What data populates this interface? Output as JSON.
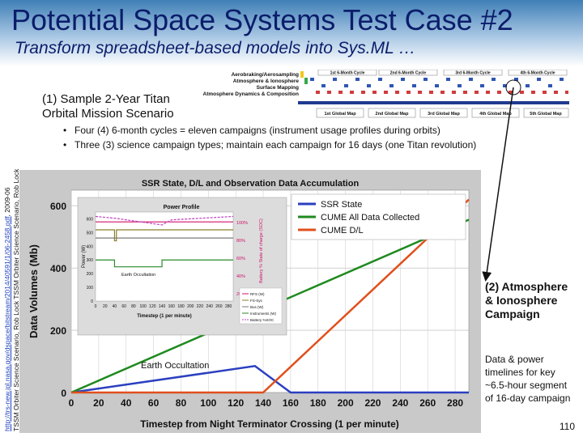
{
  "slide": {
    "title": "Potential Space Systems Test Case #2",
    "subtitle": "Transform spreadsheet-based models into Sys.ML …",
    "sample_label_line1": "(1) Sample 2-Year Titan",
    "sample_label_line2": "Orbital Mission Scenario",
    "bullets": [
      "Four (4) 6-month cycles = eleven campaigns (instrument usage profiles during orbits)",
      "Three (3) science campaign types; maintain each campaign for 16 days (one Titan revolution)"
    ],
    "credit_link": "http://trs-new.jpl.nasa.gov/dspace/bitstream/2014/40591/1/06-2458.pdf",
    "credit_text": ", 2009-06",
    "credit_line2": "TSSM Orbiter Science Scenario, Rob Lock TSSM Orbiter Science Scenario, Rob Lock",
    "right_title": [
      "(2) Atmosphere",
      "& Ionosphere",
      "Campaign"
    ],
    "right_text": [
      "Data & power",
      "timelines for key",
      "~6.5-hour segment",
      "of 16-day campaign"
    ],
    "page_number": "110"
  },
  "mission_strip": {
    "campaign_labels": [
      "Aerobraking/Aerosampling",
      "Atmosphere & Ionosphere",
      "Surface Mapping",
      "Atmosphere Dynamics & Composition"
    ],
    "cycles": [
      "1st 6-Month Cycle",
      "2nd 6-Month Cycle",
      "3rd 6-Month Cycle",
      "4th 6-Month Cycle"
    ],
    "maps": [
      "1st Global Map",
      "2nd Global Map",
      "3rd Global Map",
      "4th Global Map",
      "5th Global Map"
    ]
  },
  "main_chart": {
    "title": "SSR State, D/L and Observation Data Accumulation",
    "ylabel": "Data Volumes (Mb)",
    "xlabel": "Timestep from Night Terminator Crossing (1 per minute)",
    "annotation": "Earth Occultation",
    "legend": [
      "SSR State",
      "CUME All Data Collected",
      "CUME D/L"
    ],
    "colors": {
      "ssr": "#2b3fbf",
      "all": "#1f8a1f",
      "dl": "#e0501c"
    }
  },
  "power_chart": {
    "title": "Power Profile",
    "ylabel": "Power (W)",
    "xlabel": "Timestep (1 per minute)",
    "annotation": "Earth Occultation",
    "y2label": "Battery % State of charge (SOC)",
    "y2_ticks": [
      "100%",
      "80%",
      "60%",
      "40%",
      "20%"
    ],
    "legend": [
      "RFS (W)",
      "FS-Sys",
      "Bus (W)",
      "Instruments (W)",
      "Battery %SOC"
    ]
  },
  "chart_data": [
    {
      "type": "line",
      "title": "SSR State, D/L and Observation Data Accumulation",
      "xlabel": "Timestep from Night Terminator Crossing (1 per minute)",
      "ylabel": "Data Volumes (Mb)",
      "xlim": [
        0,
        290
      ],
      "ylim": [
        0,
        650
      ],
      "xticks": [
        0,
        20,
        40,
        60,
        80,
        100,
        120,
        140,
        160,
        180,
        200,
        220,
        240,
        260,
        280
      ],
      "yticks": [
        0,
        200,
        400,
        600
      ],
      "legend_position": "top-right",
      "series": [
        {
          "name": "SSR State",
          "x": [
            0,
            134,
            160,
            290
          ],
          "y": [
            0,
            85,
            0,
            0
          ]
        },
        {
          "name": "CUME All Data Collected",
          "x": [
            0,
            290
          ],
          "y": [
            0,
            555
          ]
        },
        {
          "name": "CUME D/L",
          "x": [
            0,
            140,
            290
          ],
          "y": [
            0,
            0,
            620
          ]
        }
      ]
    },
    {
      "type": "line",
      "title": "Power Profile",
      "xlabel": "Timestep (1 per minute)",
      "ylabel": "Power (W)",
      "xlim": [
        0,
        290
      ],
      "ylim": [
        0,
        650
      ],
      "xticks": [
        0,
        20,
        40,
        60,
        80,
        100,
        120,
        140,
        160,
        180,
        200,
        220,
        240,
        260,
        280
      ],
      "yticks": [
        0,
        100,
        200,
        300,
        400,
        500,
        600
      ],
      "series": [
        {
          "name": "RFS (W)",
          "x": [
            0,
            290
          ],
          "y": [
            578,
            578
          ]
        },
        {
          "name": "FS-Sys",
          "x": [
            0,
            40,
            40,
            44,
            44,
            290
          ],
          "y": [
            520,
            520,
            440,
            440,
            520,
            520
          ]
        },
        {
          "name": "Bus (W)",
          "x": [
            0,
            290
          ],
          "y": [
            460,
            460
          ]
        },
        {
          "name": "Instruments (W)",
          "x": [
            0,
            40,
            40,
            140,
            140,
            290
          ],
          "y": [
            300,
            300,
            250,
            250,
            300,
            300
          ]
        },
        {
          "name": "Battery %SOC",
          "x": [
            0,
            40,
            140,
            160,
            290
          ],
          "y": [
            100,
            98,
            90,
            96,
            100
          ]
        }
      ]
    }
  ]
}
